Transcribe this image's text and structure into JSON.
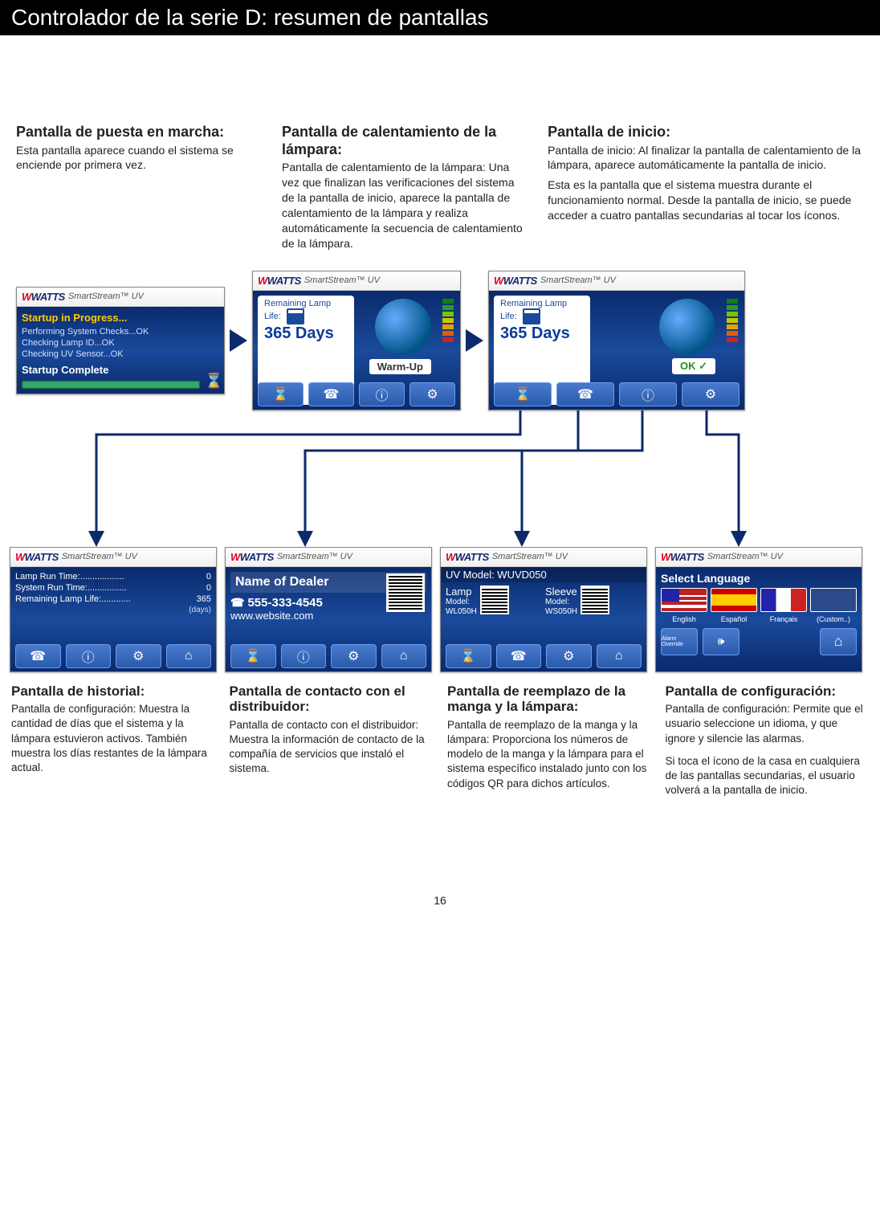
{
  "header": "Controlador de la serie D: resumen de pantallas",
  "page_number": "16",
  "brand": {
    "watts_prefix": "W",
    "watts": "WATTS",
    "product": "SmartStream™ UV"
  },
  "colors": {
    "header_bg": "#000000",
    "screen_blue_top": "#0a2a6c",
    "screen_blue_mid": "#1a4a9c",
    "accent_yellow": "#ffcc00",
    "ok_green": "#2a8a2a",
    "arrow": "#0a2a6c"
  },
  "top": [
    {
      "title": "Pantalla de puesta en marcha:",
      "text": "Esta pantalla aparece cuando el sistema se enciende por primera vez."
    },
    {
      "title": "Pantalla de calentamiento de la lámpara:",
      "text": "Pantalla de calentamiento de la lámpara: Una vez que finalizan las verificaciones del sistema de la pantalla de inicio, aparece la pantalla de calentamiento de la lámpara y realiza automáticamente la secuencia de calentamiento de la lámpara."
    },
    {
      "title": "Pantalla de inicio:",
      "p1": "Pantalla de inicio: Al finalizar la pantalla de calentamiento de la lámpara, aparece automáticamente la pantalla de inicio.",
      "p2": "Esta es la pantalla que el sistema muestra durante el funcionamiento normal. Desde la pantalla de inicio, se puede acceder a cuatro pantallas secundarias al tocar los íconos."
    }
  ],
  "startup_screen": {
    "title": "Startup in Progress...",
    "lines": [
      "Performing System Checks...OK",
      "Checking Lamp ID...OK",
      "Checking UV Sensor...OK"
    ],
    "complete": "Startup Complete"
  },
  "warmup_screen": {
    "label": "Remaining Lamp Life:",
    "days": "365 Days",
    "status": "Warm-Up"
  },
  "home_screen": {
    "label": "Remaining Lamp Life:",
    "days": "365 Days",
    "status": "OK ✓"
  },
  "icons": {
    "hourglass": "⌛",
    "phone": "☎",
    "info": "ⓘ",
    "gear": "⚙",
    "home": "⌂",
    "speaker": "🕪"
  },
  "signal_bars": [
    "#d02020",
    "#e06000",
    "#e8a000",
    "#c8c800",
    "#80c000",
    "#20a020",
    "#108010"
  ],
  "history_screen": {
    "rows": [
      {
        "label": "Lamp Run Time:..................",
        "val": "0"
      },
      {
        "label": "System Run Time:................",
        "val": "0"
      },
      {
        "label": "Remaining Lamp Life:............",
        "val": "365"
      }
    ],
    "unit": "(days)"
  },
  "dealer_screen": {
    "name": "Name of Dealer",
    "phone": "555-333-4545",
    "website": "www.website.com"
  },
  "uv_screen": {
    "model_line": "UV Model: WUVD050",
    "lamp": {
      "t1": "Lamp",
      "t2": "Model:",
      "t3": "WL050H"
    },
    "sleeve": {
      "t1": "Sleeve",
      "t2": "Model:",
      "t3": "WS050H"
    }
  },
  "config_screen": {
    "title": "Select Language",
    "langs": [
      "English",
      "Español",
      "Français",
      "(Custom..)"
    ],
    "alarm": "Alarm Override"
  },
  "bottom": [
    {
      "title": "Pantalla de historial:",
      "text": "Pantalla de configuración: Muestra la cantidad de días que el sistema y la lámpara estuvieron activos. También muestra los días restantes de la lámpara actual."
    },
    {
      "title": "Pantalla de contacto con el distribuidor:",
      "text": "Pantalla de contacto con el distribuidor: Muestra la información de contacto de la compañía de servicios que instaló el sistema."
    },
    {
      "title": "Pantalla de reemplazo de la manga y la lámpara:",
      "text": "Pantalla de reemplazo de la manga y la lámpara: Proporciona los números de modelo de la manga y la lámpara para el sistema específico instalado junto con los códigos QR para dichos artículos."
    },
    {
      "title": "Pantalla de configuración:",
      "p1": "Pantalla de configuración: Permite que el usuario seleccione un idioma, y que ignore y silencie las alarmas.",
      "p2": "Si toca el ícono de la casa en cualquiera de las pantallas secundarias, el usuario volverá a la pantalla de inicio."
    }
  ]
}
